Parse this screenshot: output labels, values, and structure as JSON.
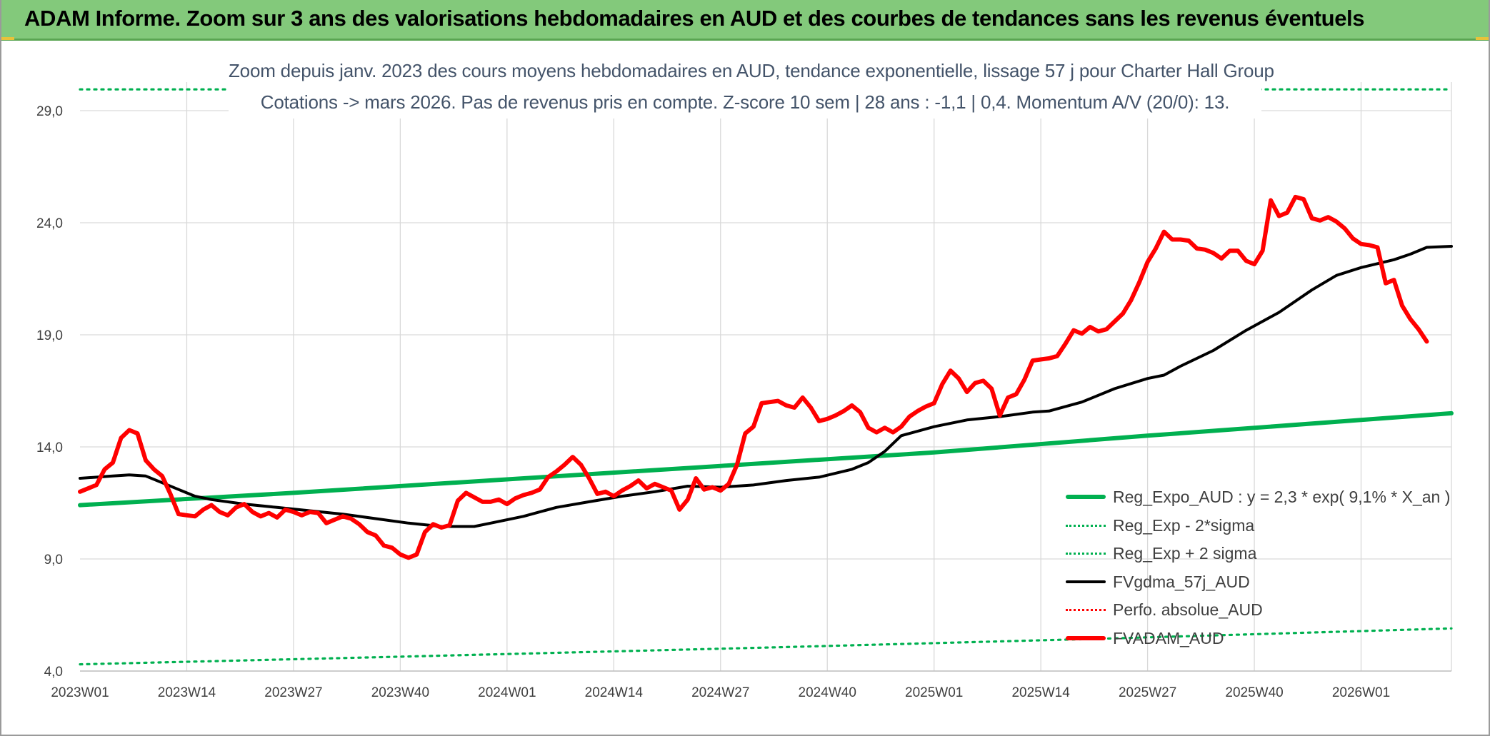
{
  "banner": {
    "title": "ADAM Informe. Zoom sur 3 ans des valorisations hebdomadaires en AUD et des courbes de tendances sans les revenus éventuels"
  },
  "subtitle": {
    "line1": "Zoom depuis janv. 2023 des cours moyens hebdomadaires en AUD, tendance exponentielle, lissage 57 j pour Charter Hall Group",
    "line2": "Cotations -> mars 2026. Pas de revenus pris en compte. Z-score 10 sem | 28 ans : -1,1 | 0,4. Momentum A/V (20/0): 13."
  },
  "colors": {
    "banner": "#83c97b",
    "reg_expo": "#00b050",
    "fvgdma": "#000000",
    "fvadam": "#ff0000",
    "grid": "#d9d9d9",
    "axis_text": "#404040",
    "subtitle_text": "#44546a"
  },
  "chart_data": {
    "type": "line",
    "title": "",
    "xlabel": "",
    "ylabel": "",
    "ylim": [
      4.0,
      29.0
    ],
    "yticks": [
      4.0,
      9.0,
      14.0,
      19.0,
      24.0,
      29.0
    ],
    "ytick_labels": [
      "4,0",
      "9,0",
      "14,0",
      "19,0",
      "24,0",
      "29,0"
    ],
    "x_index_range": [
      0,
      167
    ],
    "xtick_labels": [
      "2023W01",
      "2023W14",
      "2023W27",
      "2023W40",
      "2024W01",
      "2024W14",
      "2024W27",
      "2024W40",
      "2025W01",
      "2025W14",
      "2025W27",
      "2025W40",
      "2026W01"
    ],
    "xtick_step_weeks": 13,
    "grid": "both",
    "legend_placement": "bottom-right",
    "series": [
      {
        "name": "Reg_Expo_AUD : y = 2,3 * exp( 9,1% *  X_an )",
        "style": "solid-thick",
        "color": "#00b050",
        "points": [
          [
            0,
            11.4
          ],
          [
            26,
            11.95
          ],
          [
            52,
            12.55
          ],
          [
            78,
            13.15
          ],
          [
            104,
            13.75
          ],
          [
            130,
            14.5
          ],
          [
            156,
            15.2
          ],
          [
            167,
            15.5
          ]
        ]
      },
      {
        "name": "Reg_Exp - 2*sigma",
        "style": "dotted",
        "color": "#00b050",
        "points": [
          [
            0,
            4.3
          ],
          [
            40,
            4.65
          ],
          [
            84,
            5.05
          ],
          [
            125,
            5.45
          ],
          [
            167,
            5.9
          ]
        ]
      },
      {
        "name": "Reg_Exp + 2 sigma",
        "style": "dotted",
        "color": "#00b050",
        "points": [
          [
            0,
            29.95
          ],
          [
            167,
            29.95
          ]
        ]
      },
      {
        "name": "FVgdma_57j_AUD",
        "style": "solid",
        "color": "#000000",
        "points": [
          [
            0,
            12.6
          ],
          [
            4,
            12.7
          ],
          [
            6,
            12.75
          ],
          [
            8,
            12.7
          ],
          [
            10,
            12.4
          ],
          [
            12,
            12.1
          ],
          [
            14,
            11.8
          ],
          [
            16,
            11.65
          ],
          [
            20,
            11.45
          ],
          [
            24,
            11.3
          ],
          [
            28,
            11.15
          ],
          [
            32,
            11.0
          ],
          [
            36,
            10.8
          ],
          [
            40,
            10.6
          ],
          [
            44,
            10.45
          ],
          [
            48,
            10.45
          ],
          [
            50,
            10.6
          ],
          [
            54,
            10.9
          ],
          [
            58,
            11.3
          ],
          [
            62,
            11.55
          ],
          [
            66,
            11.8
          ],
          [
            70,
            12.0
          ],
          [
            74,
            12.25
          ],
          [
            78,
            12.2
          ],
          [
            82,
            12.3
          ],
          [
            86,
            12.5
          ],
          [
            90,
            12.65
          ],
          [
            94,
            13.0
          ],
          [
            96,
            13.3
          ],
          [
            98,
            13.8
          ],
          [
            100,
            14.5
          ],
          [
            104,
            14.9
          ],
          [
            108,
            15.2
          ],
          [
            112,
            15.35
          ],
          [
            116,
            15.55
          ],
          [
            118,
            15.6
          ],
          [
            122,
            16.0
          ],
          [
            126,
            16.6
          ],
          [
            130,
            17.05
          ],
          [
            132,
            17.2
          ],
          [
            134,
            17.6
          ],
          [
            138,
            18.3
          ],
          [
            142,
            19.2
          ],
          [
            146,
            20.0
          ],
          [
            150,
            21.0
          ],
          [
            153,
            21.65
          ],
          [
            156,
            22.0
          ],
          [
            160,
            22.35
          ],
          [
            162,
            22.6
          ],
          [
            164,
            22.9
          ],
          [
            167,
            22.95
          ]
        ]
      },
      {
        "name": "Perfo. absolue_AUD",
        "style": "dotted",
        "color": "#ff0000",
        "points": []
      },
      {
        "name": "FVADAM_AUD",
        "style": "solid-thick",
        "color": "#ff0000",
        "points": [
          [
            0,
            12.0
          ],
          [
            2,
            12.3
          ],
          [
            3,
            13.0
          ],
          [
            4,
            13.3
          ],
          [
            5,
            14.4
          ],
          [
            6,
            14.75
          ],
          [
            7,
            14.6
          ],
          [
            8,
            13.4
          ],
          [
            9,
            13.0
          ],
          [
            10,
            12.7
          ],
          [
            11,
            11.9
          ],
          [
            12,
            11.0
          ],
          [
            13,
            10.95
          ],
          [
            14,
            10.9
          ],
          [
            15,
            11.2
          ],
          [
            16,
            11.4
          ],
          [
            17,
            11.1
          ],
          [
            18,
            10.95
          ],
          [
            19,
            11.3
          ],
          [
            20,
            11.45
          ],
          [
            21,
            11.1
          ],
          [
            22,
            10.9
          ],
          [
            23,
            11.05
          ],
          [
            24,
            10.85
          ],
          [
            25,
            11.2
          ],
          [
            26,
            11.1
          ],
          [
            27,
            10.95
          ],
          [
            28,
            11.1
          ],
          [
            29,
            11.05
          ],
          [
            30,
            10.6
          ],
          [
            31,
            10.75
          ],
          [
            32,
            10.9
          ],
          [
            33,
            10.8
          ],
          [
            34,
            10.55
          ],
          [
            35,
            10.2
          ],
          [
            36,
            10.05
          ],
          [
            37,
            9.6
          ],
          [
            38,
            9.5
          ],
          [
            39,
            9.2
          ],
          [
            40,
            9.05
          ],
          [
            41,
            9.2
          ],
          [
            42,
            10.2
          ],
          [
            43,
            10.55
          ],
          [
            44,
            10.4
          ],
          [
            45,
            10.5
          ],
          [
            46,
            11.6
          ],
          [
            47,
            11.95
          ],
          [
            48,
            11.75
          ],
          [
            49,
            11.55
          ],
          [
            50,
            11.55
          ],
          [
            51,
            11.65
          ],
          [
            52,
            11.45
          ],
          [
            53,
            11.7
          ],
          [
            54,
            11.85
          ],
          [
            55,
            11.95
          ],
          [
            56,
            12.1
          ],
          [
            57,
            12.65
          ],
          [
            58,
            12.9
          ],
          [
            59,
            13.2
          ],
          [
            60,
            13.55
          ],
          [
            61,
            13.2
          ],
          [
            62,
            12.6
          ],
          [
            63,
            11.9
          ],
          [
            64,
            12.0
          ],
          [
            65,
            11.8
          ],
          [
            66,
            12.05
          ],
          [
            67,
            12.25
          ],
          [
            68,
            12.5
          ],
          [
            69,
            12.15
          ],
          [
            70,
            12.35
          ],
          [
            71,
            12.2
          ],
          [
            72,
            12.05
          ],
          [
            73,
            11.2
          ],
          [
            74,
            11.65
          ],
          [
            75,
            12.6
          ],
          [
            76,
            12.1
          ],
          [
            77,
            12.2
          ],
          [
            78,
            12.05
          ],
          [
            79,
            12.35
          ],
          [
            80,
            13.2
          ],
          [
            81,
            14.6
          ],
          [
            82,
            14.9
          ],
          [
            83,
            15.95
          ],
          [
            84,
            16.0
          ],
          [
            85,
            16.05
          ],
          [
            86,
            15.85
          ],
          [
            87,
            15.75
          ],
          [
            88,
            16.2
          ],
          [
            89,
            15.75
          ],
          [
            90,
            15.15
          ],
          [
            91,
            15.25
          ],
          [
            92,
            15.4
          ],
          [
            93,
            15.6
          ],
          [
            94,
            15.85
          ],
          [
            95,
            15.55
          ],
          [
            96,
            14.85
          ],
          [
            97,
            14.65
          ],
          [
            98,
            14.85
          ],
          [
            99,
            14.65
          ],
          [
            100,
            14.9
          ],
          [
            101,
            15.35
          ],
          [
            102,
            15.6
          ],
          [
            103,
            15.8
          ],
          [
            104,
            15.95
          ],
          [
            105,
            16.8
          ],
          [
            106,
            17.4
          ],
          [
            107,
            17.05
          ],
          [
            108,
            16.45
          ],
          [
            109,
            16.85
          ],
          [
            110,
            16.95
          ],
          [
            111,
            16.6
          ],
          [
            112,
            15.4
          ],
          [
            113,
            16.2
          ],
          [
            114,
            16.35
          ],
          [
            115,
            17.0
          ],
          [
            116,
            17.85
          ],
          [
            117,
            17.9
          ],
          [
            118,
            17.95
          ],
          [
            119,
            18.05
          ],
          [
            120,
            18.6
          ],
          [
            121,
            19.2
          ],
          [
            122,
            19.05
          ],
          [
            123,
            19.35
          ],
          [
            124,
            19.15
          ],
          [
            125,
            19.25
          ],
          [
            126,
            19.6
          ],
          [
            127,
            19.95
          ],
          [
            128,
            20.55
          ],
          [
            129,
            21.35
          ],
          [
            130,
            22.25
          ],
          [
            131,
            22.85
          ],
          [
            132,
            23.6
          ],
          [
            133,
            23.25
          ],
          [
            134,
            23.25
          ],
          [
            135,
            23.2
          ],
          [
            136,
            22.85
          ],
          [
            137,
            22.8
          ],
          [
            138,
            22.65
          ],
          [
            139,
            22.4
          ],
          [
            140,
            22.75
          ],
          [
            141,
            22.75
          ],
          [
            142,
            22.3
          ],
          [
            143,
            22.15
          ],
          [
            144,
            22.75
          ],
          [
            145,
            25.0
          ],
          [
            146,
            24.3
          ],
          [
            147,
            24.45
          ],
          [
            148,
            25.15
          ],
          [
            149,
            25.05
          ],
          [
            150,
            24.2
          ],
          [
            151,
            24.1
          ],
          [
            152,
            24.25
          ],
          [
            153,
            24.05
          ],
          [
            154,
            23.75
          ],
          [
            155,
            23.3
          ],
          [
            156,
            23.05
          ],
          [
            157,
            23.0
          ],
          [
            158,
            22.9
          ],
          [
            159,
            21.3
          ],
          [
            160,
            21.45
          ],
          [
            161,
            20.3
          ],
          [
            162,
            19.7
          ],
          [
            163,
            19.25
          ],
          [
            164,
            18.7
          ]
        ]
      }
    ]
  }
}
